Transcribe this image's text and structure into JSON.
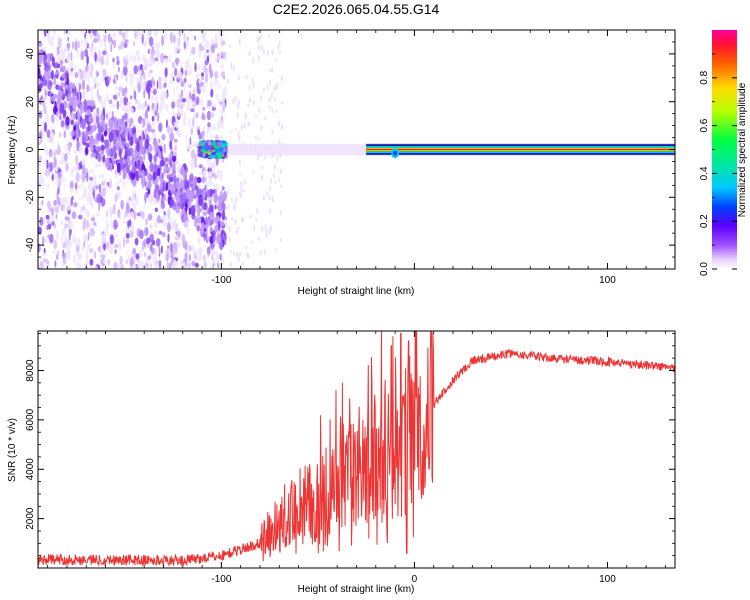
{
  "title": "C2E2.2026.065.04.55.G14",
  "chart_data": [
    {
      "type": "heatmap",
      "xlabel": "Height of straight line (km)",
      "ylabel": "Frequency (Hz)",
      "xlim": [
        -195,
        135
      ],
      "ylim": [
        -50,
        50
      ],
      "xticks": [
        -100,
        0,
        100
      ],
      "xtick_labels": [
        "-100",
        "",
        "100"
      ],
      "yticks": [
        -40,
        -20,
        0,
        20,
        40
      ],
      "ytick_labels": [
        "-40",
        "-20",
        "0",
        "20",
        "40"
      ],
      "colorbar": {
        "label": "Normalized spectral amplitude",
        "range": [
          0,
          1
        ],
        "ticks": [
          0.0,
          0.2,
          0.4,
          0.6,
          0.8
        ],
        "tick_labels": [
          "0.0",
          "0.2",
          "0.4",
          "0.6",
          "0.8"
        ]
      },
      "features": {
        "noise_region_km": [
          -195,
          -98
        ],
        "drift_track": [
          [
            -195,
            35
          ],
          [
            -170,
            10
          ],
          [
            -150,
            0
          ],
          [
            -130,
            -10
          ],
          [
            -110,
            -25
          ],
          [
            -100,
            -30
          ]
        ],
        "signal_track": [
          [
            -98,
            0
          ],
          [
            -80,
            1.5
          ],
          [
            -60,
            1.5
          ],
          [
            -40,
            0.5
          ],
          [
            -20,
            0
          ],
          [
            -10,
            -2
          ],
          [
            0,
            0
          ],
          [
            135,
            0
          ]
        ],
        "strong_tone_from_km": -25
      }
    },
    {
      "type": "line",
      "xlabel": "Height of straight line (km)",
      "ylabel": "SNR (10 * v/v)",
      "xlim": [
        -195,
        135
      ],
      "ylim": [
        0,
        9600
      ],
      "xticks": [
        -100,
        0,
        100
      ],
      "xtick_labels": [
        "-100",
        "0",
        "100"
      ],
      "yticks": [
        2000,
        4000,
        6000,
        8000
      ],
      "ytick_labels": [
        "2000",
        "4000",
        "6000",
        "8000"
      ],
      "series": [
        {
          "name": "SNR",
          "color": "#ee3333",
          "envelope": [
            [
              -195,
              350
            ],
            [
              -120,
              300
            ],
            [
              -100,
              500
            ],
            [
              -80,
              1000
            ],
            [
              -70,
              1800
            ],
            [
              -60,
              2500
            ],
            [
              -45,
              3000
            ],
            [
              -30,
              3800
            ],
            [
              -20,
              4500
            ],
            [
              -12,
              5000
            ],
            [
              -5,
              5300
            ],
            [
              0,
              5600
            ],
            [
              10,
              6600
            ],
            [
              20,
              7600
            ],
            [
              30,
              8400
            ],
            [
              50,
              8700
            ],
            [
              70,
              8500
            ],
            [
              90,
              8400
            ],
            [
              110,
              8300
            ],
            [
              135,
              8100
            ]
          ],
          "notable_spikes": [
            [
              -22,
              7300
            ],
            [
              -12,
              9000
            ],
            [
              -7,
              9500
            ],
            [
              -4,
              600
            ],
            [
              -3,
              9200
            ]
          ]
        }
      ]
    }
  ]
}
